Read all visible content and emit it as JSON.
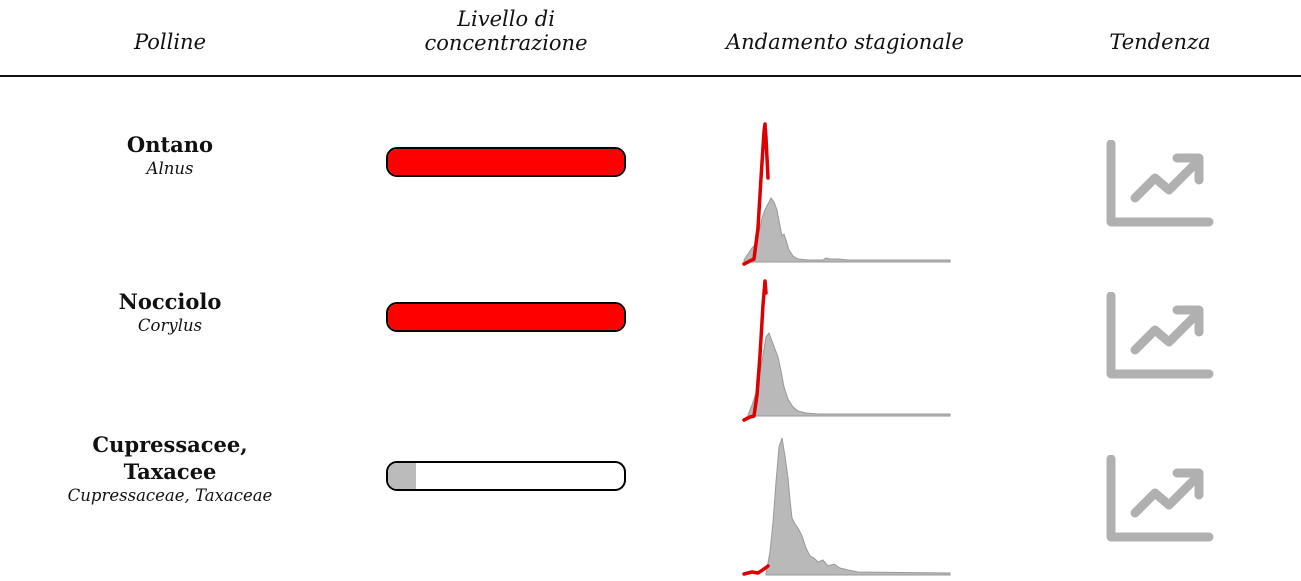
{
  "header": {
    "col_pollen": "Polline",
    "col_level_line1": "Livello di",
    "col_level_line2": "concentrazione",
    "col_season": "Andamento stagionale",
    "col_trend": "Tendenza"
  },
  "rows": [
    {
      "common": "Ontano",
      "common_line2": "",
      "latin": "Alnus",
      "level_fraction": 1.0,
      "level_color": "#ff0000",
      "trend_icon": "trending-up-icon"
    },
    {
      "common": "Nocciolo",
      "common_line2": "",
      "latin": "Corylus",
      "level_fraction": 1.0,
      "level_color": "#ff0000",
      "trend_icon": "trending-up-icon"
    },
    {
      "common": "Cupressacee,",
      "common_line2": "Taxacee",
      "latin": "Cupressaceae, Taxaceae",
      "level_fraction": 0.12,
      "level_color": "#bbbbbb",
      "trend_icon": "trending-up-icon"
    }
  ],
  "colors": {
    "current_season": "#dd0000",
    "historical_area": "#b9b9b9",
    "trend_icon": "#b0b0b0"
  }
}
